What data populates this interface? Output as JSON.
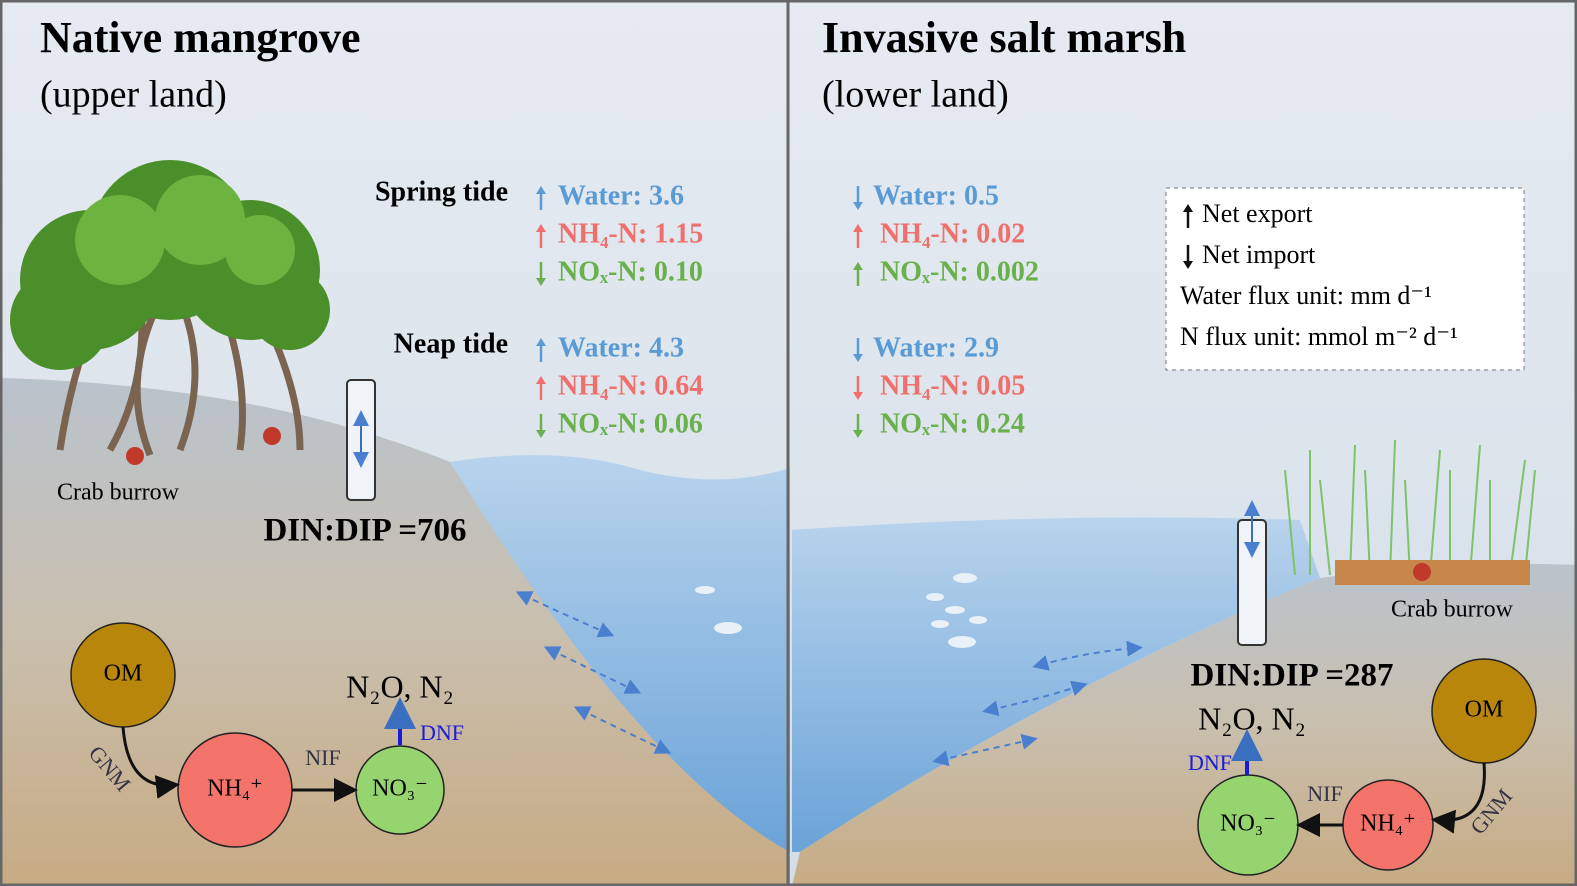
{
  "panels": [
    {
      "title": "Native mangrove",
      "subtitle": "(upper land)",
      "tides": [
        {
          "label": "Spring tide",
          "fluxes": [
            {
              "text": "Water: 3.6",
              "direction": "up"
            },
            {
              "text": "NH₄-N: 1.15",
              "direction": "up"
            },
            {
              "text": "NOₓ-N: 0.10",
              "direction": "down"
            }
          ]
        },
        {
          "label": "Neap tide",
          "fluxes": [
            {
              "text": "Water: 4.3",
              "direction": "up"
            },
            {
              "text": "NH₄-N: 0.64",
              "direction": "up"
            },
            {
              "text": "NOₓ-N: 0.06",
              "direction": "down"
            }
          ]
        }
      ],
      "crab_label": "Crab burrow",
      "ratio": "DIN:DIP =706",
      "cycle": {
        "om": "OM",
        "nh4": "NH₄⁺",
        "no3": "NO₃⁻",
        "gases": "N₂O, N₂",
        "gnm": "GNM",
        "nif": "NIF",
        "dnf": "DNF"
      }
    },
    {
      "title": "Invasive salt marsh",
      "subtitle": "(lower land)",
      "tides": [
        {
          "fluxes": [
            {
              "text": "Water: 0.5",
              "direction": "down"
            },
            {
              "text": "NH₄-N: 0.02",
              "direction": "up"
            },
            {
              "text": "NOₓ-N: 0.002",
              "direction": "up"
            }
          ]
        },
        {
          "fluxes": [
            {
              "text": "Water: 2.9",
              "direction": "down"
            },
            {
              "text": "NH₄-N: 0.05",
              "direction": "down"
            },
            {
              "text": "NOₓ-N: 0.24",
              "direction": "down"
            }
          ]
        }
      ],
      "crab_label": "Crab burrow",
      "ratio": "DIN:DIP =287",
      "cycle": {
        "om": "OM",
        "nh4": "NH₄⁺",
        "no3": "NO₃⁻",
        "gases": "N₂O, N₂",
        "gnm": "GNM",
        "nif": "NIF",
        "dnf": "DNF"
      }
    }
  ],
  "legend": {
    "items": [
      {
        "text": "Net export",
        "direction": "up"
      },
      {
        "text": "Net import",
        "direction": "down"
      },
      {
        "text": "Water flux unit: mm d⁻¹"
      },
      {
        "text": "N flux unit: mmol m⁻² d⁻¹"
      }
    ]
  }
}
